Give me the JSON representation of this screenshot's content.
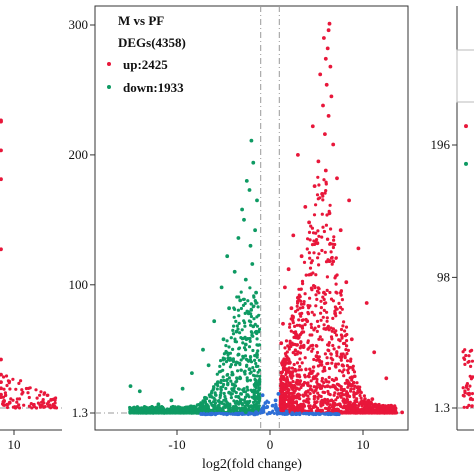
{
  "colors": {
    "up": "#e8173a",
    "down": "#0e9a63",
    "not_significant": "#2f6fd6",
    "threshold_line": "#9a9a9a"
  },
  "chart_data": [
    {
      "type": "scatter",
      "panel": "left (cropped)",
      "xticks": [
        10
      ],
      "yticks": [],
      "threshold_y": 1.3,
      "series": [
        {
          "key": "up",
          "points": [
            [
              2.6,
              230
            ],
            [
              -2.4,
              231
            ],
            [
              2.1,
              207
            ],
            [
              -2.0,
              184
            ],
            [
              1.5,
              128
            ],
            [
              2.2,
              40
            ],
            [
              3.1,
              28
            ],
            [
              3.9,
              22
            ],
            [
              4.6,
              17
            ],
            [
              5.6,
              12
            ],
            [
              6.8,
              10
            ],
            [
              7.7,
              7
            ],
            [
              9.0,
              5.5
            ]
          ]
        }
      ]
    },
    {
      "type": "scatter",
      "panel": "center",
      "legend": {
        "title_line1": "M vs PF",
        "title_line2": "DEGs(4358)",
        "up_label": "up:2425",
        "down_label": "down:1933",
        "position": "top-left"
      },
      "xlabel": "log2(fold change)",
      "xlim": [
        -18,
        15.5
      ],
      "ylim": [
        -5,
        310
      ],
      "xticks": [
        -10,
        0,
        10
      ],
      "yticks": [
        1.3,
        100,
        200,
        300
      ],
      "ytick_labels": [
        "1.3",
        "100",
        "200",
        "300"
      ],
      "threshold_y": 1.3,
      "threshold_x": [
        -1,
        1
      ],
      "counts": {
        "total": 4358,
        "up": 2425,
        "down": 1933
      },
      "series": [
        {
          "key": "up",
          "points": [
            [
              6.4,
              301
            ],
            [
              6.3,
              296
            ],
            [
              5.8,
              290
            ],
            [
              6.2,
              282
            ],
            [
              6.0,
              274
            ],
            [
              6.5,
              268
            ],
            [
              5.4,
              262
            ],
            [
              6.1,
              254
            ],
            [
              6.6,
              245
            ],
            [
              5.7,
              238
            ],
            [
              6.3,
              230
            ],
            [
              4.6,
              222
            ],
            [
              5.9,
              216
            ],
            [
              6.8,
              208
            ],
            [
              3.0,
              200
            ],
            [
              5.2,
              195
            ],
            [
              6.0,
              188
            ],
            [
              7.2,
              182
            ],
            [
              4.8,
              176
            ],
            [
              5.6,
              170
            ],
            [
              8.5,
              165
            ],
            [
              3.8,
              160
            ],
            [
              6.4,
              155
            ],
            [
              4.2,
              148
            ],
            [
              7.6,
              142
            ],
            [
              2.5,
              138
            ],
            [
              5.1,
              132
            ],
            [
              9.5,
              128
            ],
            [
              3.4,
              122
            ],
            [
              6.8,
              118
            ],
            [
              2.0,
              112
            ],
            [
              4.4,
              108
            ],
            [
              8.2,
              102
            ],
            [
              1.6,
              98
            ],
            [
              5.8,
              94
            ],
            [
              3.0,
              90
            ],
            [
              10.4,
              86
            ],
            [
              2.3,
              82
            ],
            [
              7.0,
              78
            ],
            [
              4.0,
              72
            ],
            [
              1.4,
              70
            ],
            [
              6.0,
              66
            ],
            [
              2.8,
              62
            ],
            [
              8.8,
              58
            ],
            [
              1.2,
              55
            ],
            [
              3.6,
              52
            ],
            [
              11.2,
              48
            ],
            [
              5.0,
              45
            ],
            [
              2.0,
              42
            ],
            [
              7.8,
              38
            ],
            [
              1.5,
              35
            ],
            [
              4.4,
              32
            ],
            [
              12.5,
              28
            ],
            [
              3.0,
              26
            ],
            [
              6.2,
              22
            ],
            [
              9.6,
              19
            ],
            [
              1.8,
              17
            ],
            [
              4.8,
              14
            ],
            [
              11.0,
              12
            ],
            [
              2.4,
              10
            ],
            [
              7.5,
              8
            ],
            [
              13.4,
              6
            ],
            [
              3.5,
              5
            ],
            [
              9.0,
              4
            ],
            [
              1.2,
              3.5
            ],
            [
              5.5,
              3
            ],
            [
              12.0,
              2.6
            ],
            [
              2.2,
              2.2
            ],
            [
              8.0,
              2
            ],
            [
              14.2,
              1.8
            ]
          ]
        },
        {
          "key": "down",
          "points": [
            [
              -2.0,
              211
            ],
            [
              -1.8,
              194
            ],
            [
              -2.5,
              180
            ],
            [
              -2.2,
              173
            ],
            [
              -1.4,
              165
            ],
            [
              -3.0,
              158
            ],
            [
              -2.8,
              150
            ],
            [
              -1.6,
              142
            ],
            [
              -3.4,
              136
            ],
            [
              -2.1,
              130
            ],
            [
              -4.6,
              122
            ],
            [
              -1.9,
              116
            ],
            [
              -3.8,
              110
            ],
            [
              -2.6,
              104
            ],
            [
              -5.2,
              98
            ],
            [
              -1.5,
              94
            ],
            [
              -3.2,
              88
            ],
            [
              -4.4,
              82
            ],
            [
              -2.3,
              78
            ],
            [
              -6.0,
              72
            ],
            [
              -1.8,
              68
            ],
            [
              -3.6,
              64
            ],
            [
              -5.0,
              58
            ],
            [
              -2.6,
              54
            ],
            [
              -7.2,
              50
            ],
            [
              -1.4,
              46
            ],
            [
              -4.0,
              42
            ],
            [
              -6.6,
              38
            ],
            [
              -2.2,
              35
            ],
            [
              -8.4,
              32
            ],
            [
              -3.2,
              28
            ],
            [
              -5.6,
              25
            ],
            [
              -1.6,
              22
            ],
            [
              -9.4,
              20
            ],
            [
              -4.4,
              17
            ],
            [
              -2.4,
              15
            ],
            [
              -7.0,
              13
            ],
            [
              -10.6,
              11
            ],
            [
              -3.6,
              9
            ],
            [
              -12.0,
              8
            ],
            [
              -5.5,
              7
            ],
            [
              -1.8,
              6
            ],
            [
              -13.5,
              5
            ],
            [
              -8.0,
              4.5
            ],
            [
              -15.0,
              22
            ],
            [
              -14.0,
              18
            ],
            [
              -10.0,
              3.6
            ],
            [
              -4.2,
              3
            ],
            [
              -12.6,
              2.6
            ],
            [
              -6.8,
              2.2
            ],
            [
              -2.6,
              2
            ],
            [
              -11.0,
              1.8
            ]
          ]
        },
        {
          "key": "not_significant",
          "points": [
            [
              -0.8,
              15
            ],
            [
              -0.5,
              9
            ],
            [
              -0.3,
              6
            ],
            [
              0.3,
              7
            ],
            [
              0.6,
              11
            ],
            [
              0.9,
              16
            ],
            [
              -1.5,
              2
            ],
            [
              1.8,
              2.5
            ],
            [
              -3.0,
              0.9
            ],
            [
              3.2,
              1.0
            ],
            [
              -5.0,
              0.6
            ],
            [
              5.2,
              0.7
            ],
            [
              -6.8,
              0.4
            ],
            [
              7.0,
              0.5
            ],
            [
              0.0,
              1.2
            ],
            [
              -2.2,
              1.1
            ],
            [
              2.4,
              1.2
            ]
          ]
        }
      ]
    },
    {
      "type": "scatter",
      "panel": "right (cropped)",
      "yticks": [
        1.3,
        98,
        196
      ],
      "ytick_labels": [
        "1.3",
        "98",
        "196"
      ],
      "threshold_y": 1.3,
      "series": [
        {
          "key": "up",
          "points": [
            [
              2.0,
              210
            ]
          ]
        },
        {
          "key": "down",
          "points": [
            [
              2.0,
              182
            ]
          ]
        }
      ]
    }
  ]
}
